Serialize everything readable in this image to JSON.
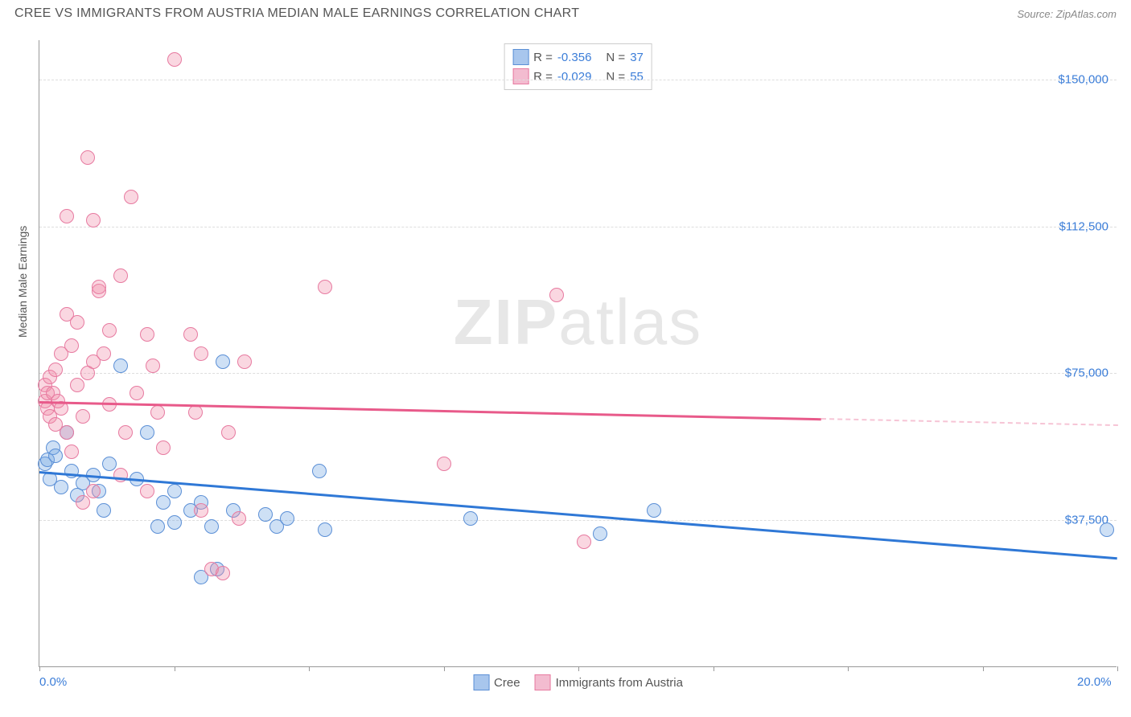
{
  "title": "CREE VS IMMIGRANTS FROM AUSTRIA MEDIAN MALE EARNINGS CORRELATION CHART",
  "source": "Source: ZipAtlas.com",
  "watermark": {
    "bold": "ZIP",
    "light": "atlas"
  },
  "ylabel": "Median Male Earnings",
  "chart": {
    "type": "scatter",
    "background": "#ffffff",
    "grid_color": "#dddddd",
    "axis_color": "#999999",
    "xlim": [
      0,
      20
    ],
    "ylim": [
      0,
      160000
    ],
    "ytick_positions": [
      37500,
      75000,
      112500,
      150000
    ],
    "ytick_labels": [
      "$37,500",
      "$75,000",
      "$112,500",
      "$150,000"
    ],
    "xtick_positions": [
      0,
      2.5,
      5,
      7.5,
      10,
      12.5,
      15,
      17.5,
      20
    ],
    "xaxis_labels": [
      {
        "pos": 0,
        "text": "0.0%"
      },
      {
        "pos": 20,
        "text": "20.0%"
      }
    ],
    "marker_radius": 9,
    "marker_stroke_width": 1.5,
    "series": [
      {
        "name": "Cree",
        "fill": "rgba(115,165,225,0.35)",
        "stroke": "#5b8fd6",
        "swatch_fill": "#a8c6ed",
        "swatch_stroke": "#5b8fd6",
        "r": "-0.356",
        "n": "37",
        "trend": {
          "color": "#2f78d6",
          "width": 2.5,
          "y_at_x0": 50000,
          "y_at_x20": 28000,
          "solid_to_x": 20
        },
        "points": [
          [
            0.1,
            52000
          ],
          [
            0.15,
            53000
          ],
          [
            0.2,
            48000
          ],
          [
            0.25,
            56000
          ],
          [
            0.3,
            54000
          ],
          [
            0.4,
            46000
          ],
          [
            0.5,
            60000
          ],
          [
            0.6,
            50000
          ],
          [
            0.7,
            44000
          ],
          [
            0.8,
            47000
          ],
          [
            1.0,
            49000
          ],
          [
            1.1,
            45000
          ],
          [
            1.2,
            40000
          ],
          [
            1.3,
            52000
          ],
          [
            1.5,
            77000
          ],
          [
            1.8,
            48000
          ],
          [
            2.0,
            60000
          ],
          [
            2.2,
            36000
          ],
          [
            2.3,
            42000
          ],
          [
            2.5,
            45000
          ],
          [
            2.5,
            37000
          ],
          [
            2.8,
            40000
          ],
          [
            3.0,
            23000
          ],
          [
            3.0,
            42000
          ],
          [
            3.2,
            36000
          ],
          [
            3.3,
            25000
          ],
          [
            3.4,
            78000
          ],
          [
            3.6,
            40000
          ],
          [
            4.2,
            39000
          ],
          [
            4.4,
            36000
          ],
          [
            4.6,
            38000
          ],
          [
            5.2,
            50000
          ],
          [
            5.3,
            35000
          ],
          [
            8.0,
            38000
          ],
          [
            10.4,
            34000
          ],
          [
            11.4,
            40000
          ],
          [
            19.8,
            35000
          ]
        ]
      },
      {
        "name": "Immigrants from Austria",
        "fill": "rgba(240,140,170,0.35)",
        "stroke": "#e77aa0",
        "swatch_fill": "#f3bcd0",
        "swatch_stroke": "#e77aa0",
        "r": "-0.029",
        "n": "55",
        "trend": {
          "color": "#e85a8a",
          "width": 2.5,
          "y_at_x0": 68000,
          "y_at_x20": 62000,
          "solid_to_x": 14.5
        },
        "points": [
          [
            0.1,
            68000
          ],
          [
            0.1,
            72000
          ],
          [
            0.15,
            66000
          ],
          [
            0.15,
            70000
          ],
          [
            0.2,
            64000
          ],
          [
            0.2,
            74000
          ],
          [
            0.25,
            70000
          ],
          [
            0.3,
            62000
          ],
          [
            0.3,
            76000
          ],
          [
            0.35,
            68000
          ],
          [
            0.4,
            66000
          ],
          [
            0.4,
            80000
          ],
          [
            0.5,
            90000
          ],
          [
            0.5,
            60000
          ],
          [
            0.5,
            115000
          ],
          [
            0.6,
            82000
          ],
          [
            0.6,
            55000
          ],
          [
            0.7,
            72000
          ],
          [
            0.7,
            88000
          ],
          [
            0.8,
            64000
          ],
          [
            0.8,
            42000
          ],
          [
            0.9,
            130000
          ],
          [
            0.9,
            75000
          ],
          [
            1.0,
            78000
          ],
          [
            1.0,
            45000
          ],
          [
            1.0,
            114000
          ],
          [
            1.1,
            96000
          ],
          [
            1.1,
            97000
          ],
          [
            1.2,
            80000
          ],
          [
            1.3,
            86000
          ],
          [
            1.3,
            67000
          ],
          [
            1.5,
            49000
          ],
          [
            1.5,
            100000
          ],
          [
            1.6,
            60000
          ],
          [
            1.7,
            120000
          ],
          [
            1.8,
            70000
          ],
          [
            2.0,
            85000
          ],
          [
            2.0,
            45000
          ],
          [
            2.1,
            77000
          ],
          [
            2.2,
            65000
          ],
          [
            2.3,
            56000
          ],
          [
            2.5,
            155000
          ],
          [
            2.8,
            85000
          ],
          [
            2.9,
            65000
          ],
          [
            3.0,
            80000
          ],
          [
            3.0,
            40000
          ],
          [
            3.2,
            25000
          ],
          [
            3.4,
            24000
          ],
          [
            3.5,
            60000
          ],
          [
            3.7,
            38000
          ],
          [
            3.8,
            78000
          ],
          [
            5.3,
            97000
          ],
          [
            7.5,
            52000
          ],
          [
            9.6,
            95000
          ],
          [
            10.1,
            32000
          ]
        ]
      }
    ]
  },
  "legend_bottom": [
    {
      "label": "Cree"
    },
    {
      "label": "Immigrants from Austria"
    }
  ]
}
